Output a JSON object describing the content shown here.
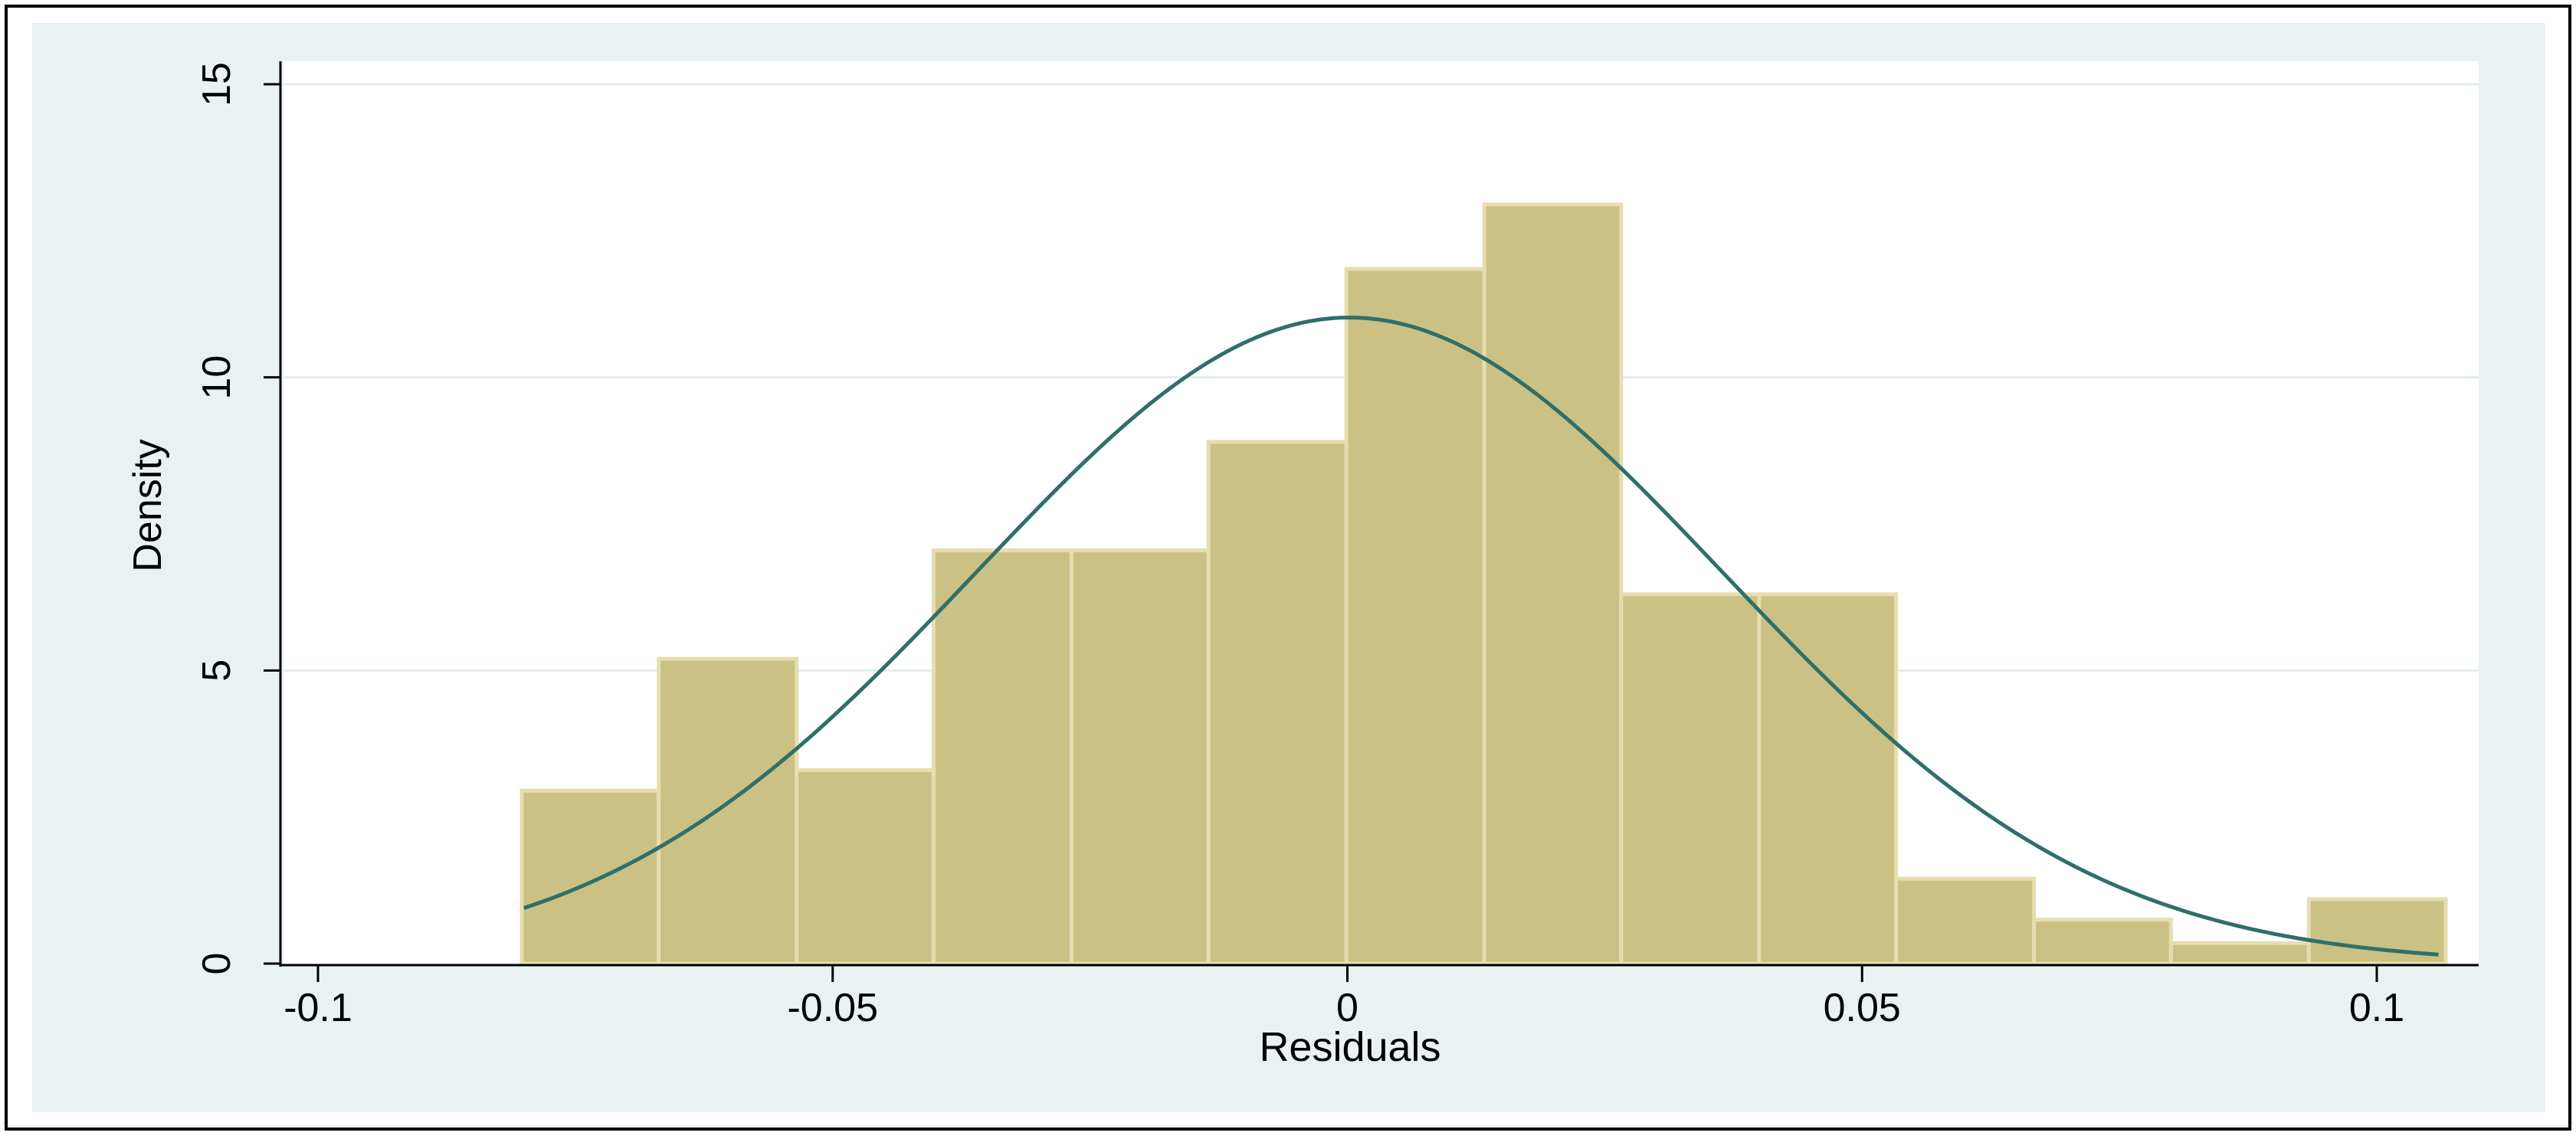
{
  "chart_data": {
    "type": "bar",
    "title": "",
    "xlabel": "Residuals",
    "ylabel": "Density",
    "xlim": [
      -0.1,
      0.1
    ],
    "ylim": [
      0,
      15
    ],
    "x_ticks": [
      {
        "value": -0.1,
        "label": "-0.1"
      },
      {
        "value": -0.05,
        "label": "-0.05"
      },
      {
        "value": 0,
        "label": "0"
      },
      {
        "value": 0.05,
        "label": "0.05"
      },
      {
        "value": 0.1,
        "label": "0.1"
      }
    ],
    "y_ticks": [
      {
        "value": 0,
        "label": "0"
      },
      {
        "value": 5,
        "label": "5"
      },
      {
        "value": 10,
        "label": "10"
      },
      {
        "value": 15,
        "label": "15"
      }
    ],
    "grid": true,
    "bins": [
      {
        "x0": -0.0802,
        "x1": -0.0669,
        "density": 2.95
      },
      {
        "x0": -0.0669,
        "x1": -0.0535,
        "density": 5.2
      },
      {
        "x0": -0.0535,
        "x1": -0.0402,
        "density": 3.3
      },
      {
        "x0": -0.0402,
        "x1": -0.0268,
        "density": 7.05
      },
      {
        "x0": -0.0268,
        "x1": -0.0135,
        "density": 7.05
      },
      {
        "x0": -0.0135,
        "x1": -0.0001,
        "density": 8.9
      },
      {
        "x0": -0.0001,
        "x1": 0.0133,
        "density": 11.85
      },
      {
        "x0": 0.0133,
        "x1": 0.0266,
        "density": 12.95
      },
      {
        "x0": 0.0266,
        "x1": 0.04,
        "density": 6.3
      },
      {
        "x0": 0.04,
        "x1": 0.0533,
        "density": 6.3
      },
      {
        "x0": 0.0533,
        "x1": 0.0667,
        "density": 1.45
      },
      {
        "x0": 0.0667,
        "x1": 0.08,
        "density": 0.75
      },
      {
        "x0": 0.08,
        "x1": 0.0934,
        "density": 0.35
      },
      {
        "x0": 0.0934,
        "x1": 0.1067,
        "density": 1.1
      }
    ],
    "normal_curve": {
      "mean": 0.0002,
      "sd": 0.0362,
      "x_range": [
        -0.08,
        0.106
      ]
    },
    "colors": {
      "bar_fill": "#CBC184",
      "bar_edge": "#E6DEB0",
      "curve": "#2F6F6A",
      "outer_background": "#EAF1F3",
      "plot_background": "#FFFFFF",
      "grid": "#E2ECEF",
      "axis": "#000000",
      "frame": "#000000"
    }
  }
}
